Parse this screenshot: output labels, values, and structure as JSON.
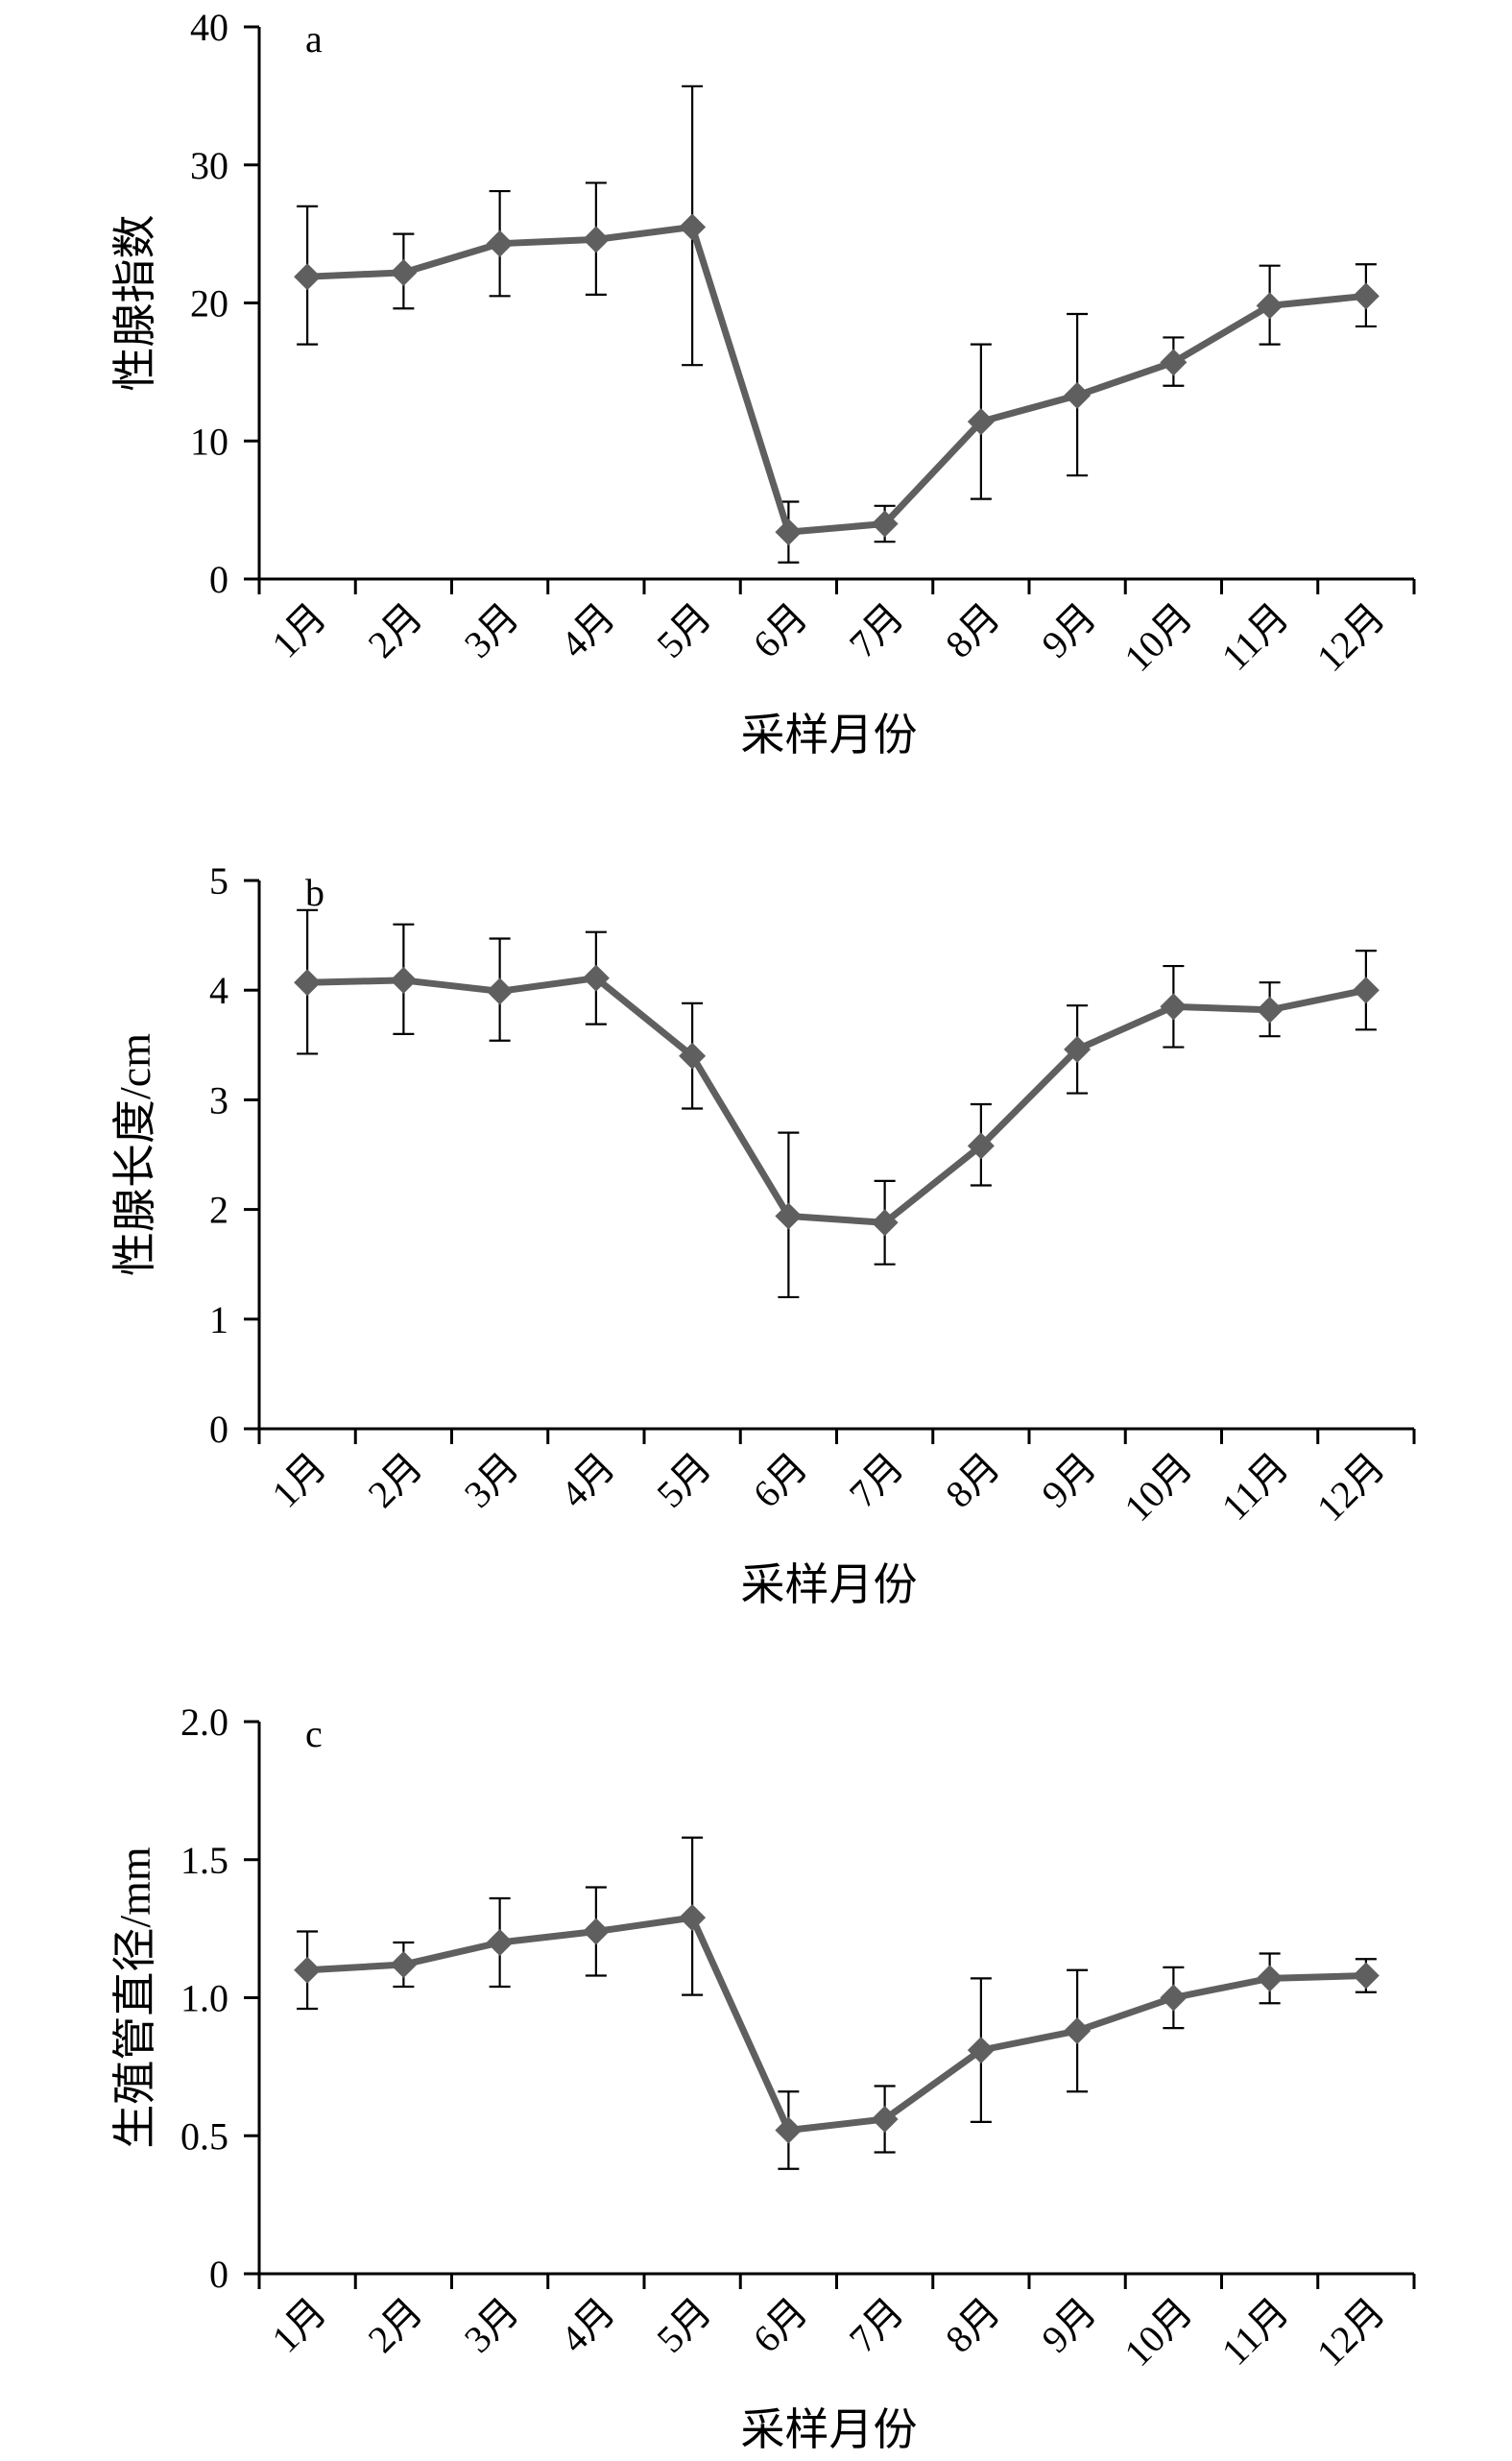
{
  "colors": {
    "series": "#5f5f5f",
    "axis": "#000000",
    "text": "#000000"
  },
  "chart_data": [
    {
      "type": "line",
      "panel_label": "a",
      "xlabel": "采样月份",
      "ylabel": "性腺指数",
      "categories": [
        "1月",
        "2月",
        "3月",
        "4月",
        "5月",
        "6月",
        "7月",
        "8月",
        "9月",
        "10月",
        "11月",
        "12月"
      ],
      "ylim": [
        0,
        40
      ],
      "yticks": [
        0,
        10,
        20,
        30,
        40
      ],
      "ytick_labels": [
        "0",
        "10",
        "20",
        "30",
        "40"
      ],
      "marker": "diamond",
      "grid": false,
      "legend": "none",
      "series": [
        {
          "values": [
            21.9,
            22.2,
            24.3,
            24.6,
            25.5,
            3.4,
            4.0,
            11.4,
            13.3,
            15.7,
            19.8,
            20.5
          ],
          "error_upper": [
            27.0,
            25.0,
            28.1,
            28.7,
            35.7,
            5.6,
            5.3,
            17.0,
            19.2,
            17.5,
            22.7,
            22.8
          ],
          "error_lower": [
            17.0,
            19.6,
            20.5,
            20.6,
            15.5,
            1.2,
            2.7,
            5.8,
            7.5,
            14.0,
            17.0,
            18.3
          ]
        }
      ]
    },
    {
      "type": "line",
      "panel_label": "b",
      "xlabel": "采样月份",
      "ylabel": "性腺长度/cm",
      "categories": [
        "1月",
        "2月",
        "3月",
        "4月",
        "5月",
        "6月",
        "7月",
        "8月",
        "9月",
        "10月",
        "11月",
        "12月"
      ],
      "ylim": [
        0,
        5
      ],
      "yticks": [
        0,
        1,
        2,
        3,
        4,
        5
      ],
      "ytick_labels": [
        "0",
        "1",
        "2",
        "3",
        "4",
        "5"
      ],
      "marker": "diamond",
      "grid": false,
      "legend": "none",
      "series": [
        {
          "values": [
            4.07,
            4.09,
            3.99,
            4.11,
            3.4,
            1.94,
            1.88,
            2.58,
            3.46,
            3.85,
            3.82,
            4.0
          ],
          "error_upper": [
            4.73,
            4.6,
            4.47,
            4.53,
            3.88,
            2.7,
            2.26,
            2.96,
            3.86,
            4.22,
            4.07,
            4.36
          ],
          "error_lower": [
            3.42,
            3.6,
            3.54,
            3.69,
            2.92,
            1.2,
            1.5,
            2.22,
            3.06,
            3.48,
            3.58,
            3.64
          ]
        }
      ]
    },
    {
      "type": "line",
      "panel_label": "c",
      "xlabel": "采样月份",
      "ylabel": "生殖管直径/mm",
      "categories": [
        "1月",
        "2月",
        "3月",
        "4月",
        "5月",
        "6月",
        "7月",
        "8月",
        "9月",
        "10月",
        "11月",
        "12月"
      ],
      "ylim": [
        0,
        2.0
      ],
      "yticks": [
        0,
        0.5,
        1.0,
        1.5,
        2.0
      ],
      "ytick_labels": [
        "0",
        "0.5",
        "1.0",
        "1.5",
        "2.0"
      ],
      "marker": "diamond",
      "grid": false,
      "legend": "none",
      "series": [
        {
          "values": [
            1.1,
            1.12,
            1.2,
            1.24,
            1.29,
            0.52,
            0.56,
            0.81,
            0.88,
            1.0,
            1.07,
            1.08
          ],
          "error_upper": [
            1.24,
            1.2,
            1.36,
            1.4,
            1.58,
            0.66,
            0.68,
            1.07,
            1.1,
            1.11,
            1.16,
            1.14
          ],
          "error_lower": [
            0.96,
            1.04,
            1.04,
            1.08,
            1.01,
            0.38,
            0.44,
            0.55,
            0.66,
            0.89,
            0.98,
            1.02
          ]
        }
      ]
    }
  ]
}
